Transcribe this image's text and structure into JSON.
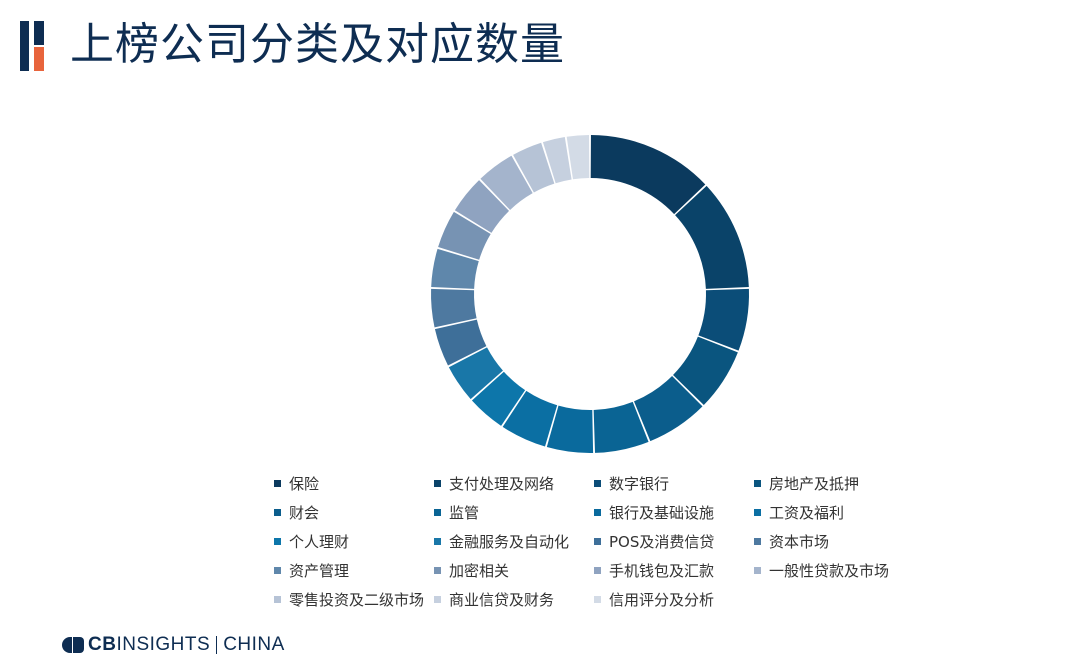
{
  "header": {
    "title": "上榜公司分类及对应数量"
  },
  "brand": {
    "cb": "CB",
    "insights": "INSIGHTS",
    "region": "CHINA"
  },
  "chart_data": {
    "type": "pie",
    "title": "",
    "categories": [
      "保险",
      "支付处理及网络",
      "数字银行",
      "房地产及抵押",
      "财会",
      "监管",
      "银行及基础设施",
      "工资及福利",
      "个人理财",
      "金融服务及自动化",
      "POS及消费信贷",
      "资本市场",
      "资产管理",
      "加密相关",
      "手机钱包及汇款",
      "一般性贷款及市场",
      "零售投资及二级市场",
      "商业信贷及财务",
      "信用评分及分析"
    ],
    "values": [
      16,
      14,
      8,
      8,
      8,
      7,
      6,
      6,
      5,
      5,
      5,
      5,
      5,
      5,
      5,
      5,
      4,
      3,
      3
    ],
    "colors": [
      "#0b3a5e",
      "#0a4369",
      "#0b4d78",
      "#0a557f",
      "#0b5d8c",
      "#0a6494",
      "#0a6a9d",
      "#0b6fa3",
      "#0d76aa",
      "#1977a8",
      "#3e6f99",
      "#4e79a0",
      "#5f87ab",
      "#7793b3",
      "#8fa3c0",
      "#a4b4cc",
      "#b6c3d6",
      "#c6d0df",
      "#d3dbe6"
    ],
    "legend_position": "bottom"
  }
}
